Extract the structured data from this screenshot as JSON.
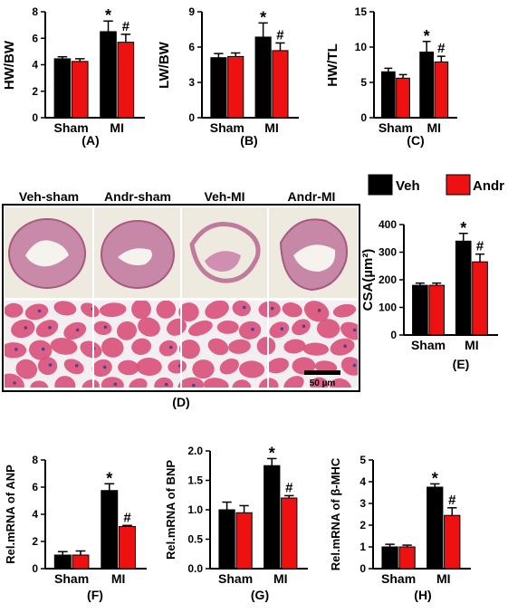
{
  "colors": {
    "veh": "#000000",
    "andr": "#ee1111",
    "tissue_bg": "#eeeae0",
    "he_pink": "#d9507a",
    "he_gap": "#f3eef2"
  },
  "legend": {
    "veh": "Veh",
    "andr": "Andr"
  },
  "histology": {
    "panel_label": "(D)",
    "column_titles": [
      "Veh-sham",
      "Andr-sham",
      "Veh-MI",
      "Andr-MI"
    ],
    "scale_bar": "50 µm"
  },
  "chart_data": [
    {
      "id": "A",
      "type": "bar",
      "panel_label": "(A)",
      "ylabel": "HW/BW",
      "categories": [
        "Sham",
        "MI"
      ],
      "ylim": [
        0,
        8
      ],
      "yticks": [
        0,
        2,
        4,
        6,
        8
      ],
      "series": [
        {
          "name": "Veh",
          "values": [
            4.45,
            6.5
          ],
          "errors": [
            0.15,
            0.8
          ]
        },
        {
          "name": "Andr",
          "values": [
            4.25,
            5.7
          ],
          "errors": [
            0.2,
            0.6
          ]
        }
      ],
      "annotations": [
        {
          "series": 0,
          "category": 1,
          "text": "*"
        },
        {
          "series": 1,
          "category": 1,
          "text": "#"
        }
      ]
    },
    {
      "id": "B",
      "type": "bar",
      "panel_label": "(B)",
      "ylabel": "LW/BW",
      "categories": [
        "Sham",
        "MI"
      ],
      "ylim": [
        0,
        9
      ],
      "yticks": [
        0,
        3,
        6,
        9
      ],
      "series": [
        {
          "name": "Veh",
          "values": [
            5.1,
            6.85
          ],
          "errors": [
            0.35,
            1.2
          ]
        },
        {
          "name": "Andr",
          "values": [
            5.2,
            5.7
          ],
          "errors": [
            0.3,
            0.65
          ]
        }
      ],
      "annotations": [
        {
          "series": 0,
          "category": 1,
          "text": "*"
        },
        {
          "series": 1,
          "category": 1,
          "text": "#"
        }
      ]
    },
    {
      "id": "C",
      "type": "bar",
      "panel_label": "(C)",
      "ylabel": "HW/TL",
      "categories": [
        "Sham",
        "MI"
      ],
      "ylim": [
        0,
        15
      ],
      "yticks": [
        0,
        5,
        10,
        15
      ],
      "series": [
        {
          "name": "Veh",
          "values": [
            6.5,
            9.3
          ],
          "errors": [
            0.5,
            1.5
          ]
        },
        {
          "name": "Andr",
          "values": [
            5.6,
            7.9
          ],
          "errors": [
            0.5,
            0.8
          ]
        }
      ],
      "annotations": [
        {
          "series": 0,
          "category": 1,
          "text": "*"
        },
        {
          "series": 1,
          "category": 1,
          "text": "#"
        }
      ]
    },
    {
      "id": "E",
      "type": "bar",
      "panel_label": "(E)",
      "ylabel": "CSA(µm²)",
      "categories": [
        "Sham",
        "MI"
      ],
      "ylim": [
        0,
        400
      ],
      "yticks": [
        0,
        100,
        200,
        300,
        400
      ],
      "series": [
        {
          "name": "Veh",
          "values": [
            180,
            340
          ],
          "errors": [
            8,
            28
          ]
        },
        {
          "name": "Andr",
          "values": [
            180,
            265
          ],
          "errors": [
            8,
            28
          ]
        }
      ],
      "annotations": [
        {
          "series": 0,
          "category": 1,
          "text": "*"
        },
        {
          "series": 1,
          "category": 1,
          "text": "#"
        }
      ]
    },
    {
      "id": "F",
      "type": "bar",
      "panel_label": "(F)",
      "ylabel": "Rel.mRNA of ANP",
      "categories": [
        "Sham",
        "MI"
      ],
      "ylim": [
        0,
        8
      ],
      "yticks": [
        0,
        2,
        4,
        6,
        8
      ],
      "series": [
        {
          "name": "Veh",
          "values": [
            1.0,
            5.75
          ],
          "errors": [
            0.25,
            0.5
          ]
        },
        {
          "name": "Andr",
          "values": [
            1.0,
            3.1
          ],
          "errors": [
            0.3,
            0.08
          ]
        }
      ],
      "annotations": [
        {
          "series": 0,
          "category": 1,
          "text": "*"
        },
        {
          "series": 1,
          "category": 1,
          "text": "#"
        }
      ]
    },
    {
      "id": "G",
      "type": "bar",
      "panel_label": "(G)",
      "ylabel": "Rel.mRNA of BNP",
      "categories": [
        "Sham",
        "MI"
      ],
      "ylim": [
        0,
        2.0
      ],
      "yticks": [
        0,
        0.5,
        1.0,
        1.5,
        2.0
      ],
      "ytick_labels": [
        "0.0",
        "0.5",
        "1.0",
        "1.5",
        "2.0"
      ],
      "series": [
        {
          "name": "Veh",
          "values": [
            1.0,
            1.75
          ],
          "errors": [
            0.13,
            0.12
          ]
        },
        {
          "name": "Andr",
          "values": [
            0.95,
            1.2
          ],
          "errors": [
            0.12,
            0.04
          ]
        }
      ],
      "annotations": [
        {
          "series": 0,
          "category": 1,
          "text": "*"
        },
        {
          "series": 1,
          "category": 1,
          "text": "#"
        }
      ]
    },
    {
      "id": "H",
      "type": "bar",
      "panel_label": "(H)",
      "ylabel": "Rel.mRNA of β-MHC",
      "categories": [
        "Sham",
        "MI"
      ],
      "ylim": [
        0,
        5
      ],
      "yticks": [
        0,
        1,
        2,
        3,
        4,
        5
      ],
      "series": [
        {
          "name": "Veh",
          "values": [
            1.0,
            3.75
          ],
          "errors": [
            0.12,
            0.15
          ]
        },
        {
          "name": "Andr",
          "values": [
            1.0,
            2.45
          ],
          "errors": [
            0.08,
            0.35
          ]
        }
      ],
      "annotations": [
        {
          "series": 0,
          "category": 1,
          "text": "*"
        },
        {
          "series": 1,
          "category": 1,
          "text": "#"
        }
      ]
    }
  ]
}
